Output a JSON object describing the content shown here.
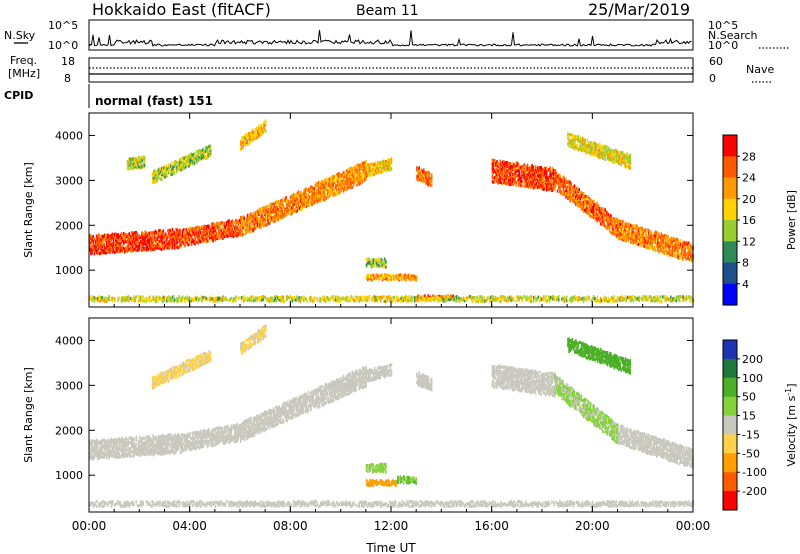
{
  "header": {
    "site": "Hokkaido East (fitACF)",
    "beam": "Beam 11",
    "date": "25/Mar/2019"
  },
  "top_panels": {
    "nsky_label": "N.Sky",
    "nsearch_label": "N.Search",
    "freq_label_line1": "Freq.",
    "freq_label_line2": "[MHz]",
    "nave_label": "Nave",
    "cpid_label": "CPID",
    "cpid_value": "normal (fast) 151",
    "noise_ticks_left": [
      "10^5",
      "10^0"
    ],
    "noise_ticks_right": [
      "10^5",
      "10^0"
    ],
    "freq_ticks": [
      "18",
      "8"
    ],
    "nave_ticks": [
      "60",
      "0"
    ]
  },
  "chart_data": [
    {
      "type": "heatmap",
      "name": "power",
      "xlabel": "",
      "ylabel": "Slant Range [km]",
      "xlim": [
        0,
        24
      ],
      "ylim": [
        180,
        4500
      ],
      "x_ticks": [
        "00:00",
        "04:00",
        "08:00",
        "12:00",
        "16:00",
        "20:00",
        "00:00"
      ],
      "y_ticks": [
        1000,
        2000,
        3000,
        4000
      ],
      "colorbar": {
        "label": "Power [dB]",
        "ticks": [
          "28",
          "24",
          "20",
          "16",
          "12",
          "8",
          "4"
        ],
        "colors": [
          "#ff0000",
          "#ff5a00",
          "#ff9900",
          "#ffd200",
          "#9acd32",
          "#2e8b57",
          "#1e4f8c",
          "#0000ff"
        ]
      },
      "regions": [
        {
          "x": [
            0.0,
            3.6
          ],
          "y_start": 1550,
          "y_end": 1700,
          "width": 420,
          "value": 26
        },
        {
          "x": [
            3.6,
            6.0
          ],
          "y_start": 1700,
          "y_end": 1950,
          "width": 380,
          "value": 24
        },
        {
          "x": [
            6.0,
            9.0
          ],
          "y_start": 1950,
          "y_end": 2700,
          "width": 420,
          "value": 22
        },
        {
          "x": [
            9.0,
            11.0
          ],
          "y_start": 2700,
          "y_end": 3200,
          "width": 450,
          "value": 21
        },
        {
          "x": [
            11.0,
            12.0
          ],
          "y_start": 3200,
          "y_end": 3350,
          "width": 260,
          "value": 18
        },
        {
          "x": [
            13.0,
            13.6
          ],
          "y_start": 3150,
          "y_end": 3000,
          "width": 300,
          "value": 23
        },
        {
          "x": [
            16.0,
            18.5
          ],
          "y_start": 3200,
          "y_end": 3000,
          "width": 500,
          "value": 25
        },
        {
          "x": [
            18.5,
            21.0
          ],
          "y_start": 3000,
          "y_end": 1900,
          "width": 420,
          "value": 23
        },
        {
          "x": [
            21.0,
            24.0
          ],
          "y_start": 1900,
          "y_end": 1350,
          "width": 420,
          "value": 22
        },
        {
          "x": [
            11.0,
            13.0
          ],
          "y_start": 830,
          "y_end": 830,
          "width": 120,
          "value": 20
        },
        {
          "x": [
            11.0,
            11.8
          ],
          "y_start": 1150,
          "y_end": 1150,
          "width": 180,
          "value": 12
        },
        {
          "x": [
            13.0,
            14.6
          ],
          "y_start": 380,
          "y_end": 380,
          "width": 80,
          "value": 25
        },
        {
          "x": [
            0.0,
            24.0
          ],
          "y_start": 350,
          "y_end": 350,
          "width": 110,
          "value": 14
        },
        {
          "x": [
            2.5,
            4.8
          ],
          "y_start": 3050,
          "y_end": 3650,
          "width": 260,
          "value": 13
        },
        {
          "x": [
            6.0,
            7.0
          ],
          "y_start": 3800,
          "y_end": 4200,
          "width": 250,
          "value": 18
        },
        {
          "x": [
            19.0,
            21.5
          ],
          "y_start": 3900,
          "y_end": 3400,
          "width": 300,
          "value": 15
        },
        {
          "x": [
            1.5,
            2.2
          ],
          "y_start": 3350,
          "y_end": 3400,
          "width": 250,
          "value": 14
        }
      ]
    },
    {
      "type": "heatmap",
      "name": "velocity",
      "xlabel": "Time UT",
      "ylabel": "Slant Range [km]",
      "xlim": [
        0,
        24
      ],
      "ylim": [
        180,
        4500
      ],
      "x_ticks": [
        "00:00",
        "04:00",
        "08:00",
        "12:00",
        "16:00",
        "20:00",
        "00:00"
      ],
      "y_ticks": [
        1000,
        2000,
        3000,
        4000
      ],
      "colorbar": {
        "label": "Velocity",
        "unit_prefix": "[m s",
        "unit_sup": "-1",
        "unit_suffix": "]",
        "ticks": [
          "200",
          "100",
          "50",
          "15",
          "-15",
          "-50",
          "-100",
          "-200"
        ],
        "colors": [
          "#1e32b4",
          "#1e7a3c",
          "#4caf28",
          "#86d23c",
          "#c8c8be",
          "#ffd24a",
          "#ffa000",
          "#ff5a00",
          "#ff0000"
        ]
      },
      "regions": [
        {
          "x": [
            0.0,
            3.6
          ],
          "y_start": 1550,
          "y_end": 1700,
          "width": 420,
          "value": 0
        },
        {
          "x": [
            3.6,
            6.0
          ],
          "y_start": 1700,
          "y_end": 1950,
          "width": 380,
          "value": 0
        },
        {
          "x": [
            6.0,
            9.0
          ],
          "y_start": 1950,
          "y_end": 2700,
          "width": 420,
          "value": 0
        },
        {
          "x": [
            9.0,
            11.0
          ],
          "y_start": 2700,
          "y_end": 3200,
          "width": 450,
          "value": 0
        },
        {
          "x": [
            11.0,
            12.0
          ],
          "y_start": 3200,
          "y_end": 3350,
          "width": 260,
          "value": 0
        },
        {
          "x": [
            13.0,
            13.6
          ],
          "y_start": 3150,
          "y_end": 3000,
          "width": 300,
          "value": 0
        },
        {
          "x": [
            16.0,
            18.5
          ],
          "y_start": 3200,
          "y_end": 3000,
          "width": 500,
          "value": 0
        },
        {
          "x": [
            18.5,
            21.0
          ],
          "y_start": 3000,
          "y_end": 1900,
          "width": 420,
          "value": 20
        },
        {
          "x": [
            21.0,
            24.0
          ],
          "y_start": 1900,
          "y_end": 1350,
          "width": 420,
          "value": 0
        },
        {
          "x": [
            11.0,
            12.2
          ],
          "y_start": 820,
          "y_end": 820,
          "width": 120,
          "value": -60
        },
        {
          "x": [
            12.2,
            13.0
          ],
          "y_start": 880,
          "y_end": 880,
          "width": 150,
          "value": 30
        },
        {
          "x": [
            11.0,
            11.8
          ],
          "y_start": 1150,
          "y_end": 1150,
          "width": 180,
          "value": 20
        },
        {
          "x": [
            0.0,
            24.0
          ],
          "y_start": 350,
          "y_end": 350,
          "width": 110,
          "value": 0
        },
        {
          "x": [
            2.5,
            4.8
          ],
          "y_start": 3050,
          "y_end": 3650,
          "width": 260,
          "value": -20
        },
        {
          "x": [
            6.0,
            7.0
          ],
          "y_start": 3800,
          "y_end": 4200,
          "width": 250,
          "value": -20
        },
        {
          "x": [
            19.0,
            21.5
          ],
          "y_start": 3900,
          "y_end": 3400,
          "width": 300,
          "value": 60
        }
      ]
    }
  ]
}
